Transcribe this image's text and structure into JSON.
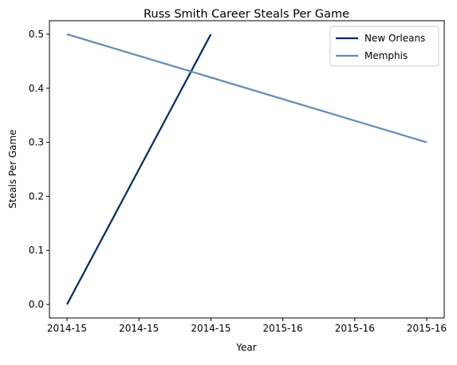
{
  "chart_data": {
    "type": "line",
    "title": "Russ Smith  Career Steals Per Game",
    "xlabel": "Year",
    "ylabel": "Steals Per Game",
    "x_tick_labels": [
      "2014-15",
      "2014-15",
      "2014-15",
      "2015-16",
      "2015-16",
      "2015-16"
    ],
    "yticks": [
      0.0,
      0.1,
      0.2,
      0.3,
      0.4,
      0.5
    ],
    "y_tick_labels": [
      "0.0",
      "0.1",
      "0.2",
      "0.3",
      "0.4",
      "0.5"
    ],
    "ylim": [
      -0.025,
      0.525
    ],
    "grid": false,
    "legend_position": "top-right",
    "series": [
      {
        "name": "New Orleans",
        "color": "#002b5c",
        "x": [
          "2014-15",
          "2014-15"
        ],
        "y": [
          0.0,
          0.5
        ]
      },
      {
        "name": "Memphis",
        "color": "#6189b9",
        "x": [
          "2014-15",
          "2015-16"
        ],
        "y": [
          0.5,
          0.3
        ]
      }
    ]
  }
}
